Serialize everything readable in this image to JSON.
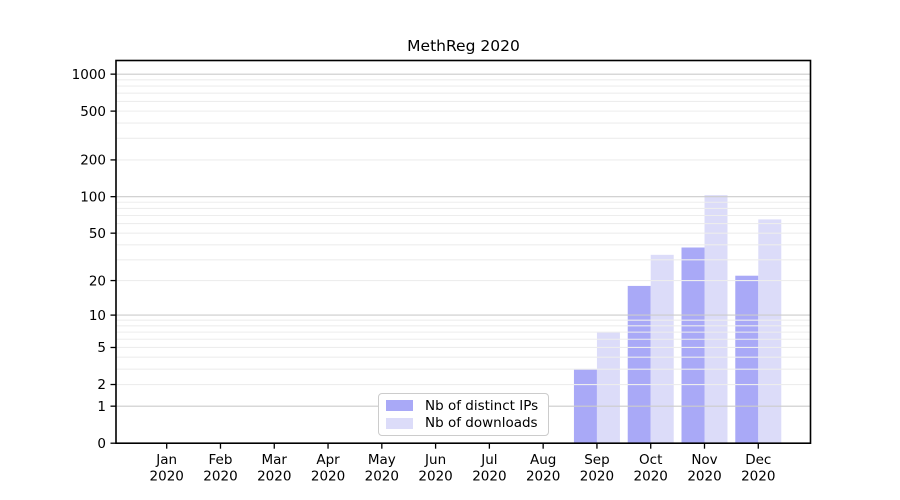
{
  "chart_data": {
    "type": "bar",
    "title": "MethReg 2020",
    "categories": [
      "Jan 2020",
      "Feb 2020",
      "Mar 2020",
      "Apr 2020",
      "May 2020",
      "Jun 2020",
      "Jul 2020",
      "Aug 2020",
      "Sep 2020",
      "Oct 2020",
      "Nov 2020",
      "Dec 2020"
    ],
    "series": [
      {
        "name": "Nb of distinct IPs",
        "color": "#a9a9f7",
        "values": [
          0,
          0,
          0,
          0,
          0,
          0,
          0,
          0,
          3,
          18,
          38,
          22
        ]
      },
      {
        "name": "Nb of downloads",
        "color": "#dcdcf9",
        "values": [
          0,
          0,
          0,
          0,
          0,
          0,
          0,
          0,
          7,
          33,
          103,
          65
        ]
      }
    ],
    "xlabel": "",
    "ylabel": "",
    "y_scale": "log10(1+y)",
    "y_ticks": [
      0,
      1,
      2,
      5,
      10,
      20,
      50,
      100,
      200,
      500,
      1000
    ],
    "ylim": [
      0,
      1290
    ],
    "grid": true,
    "grid_minor_color": "#ededed",
    "grid_major_color": "#cccccc",
    "axis_color": "#000000",
    "legend_position": "lower center"
  }
}
